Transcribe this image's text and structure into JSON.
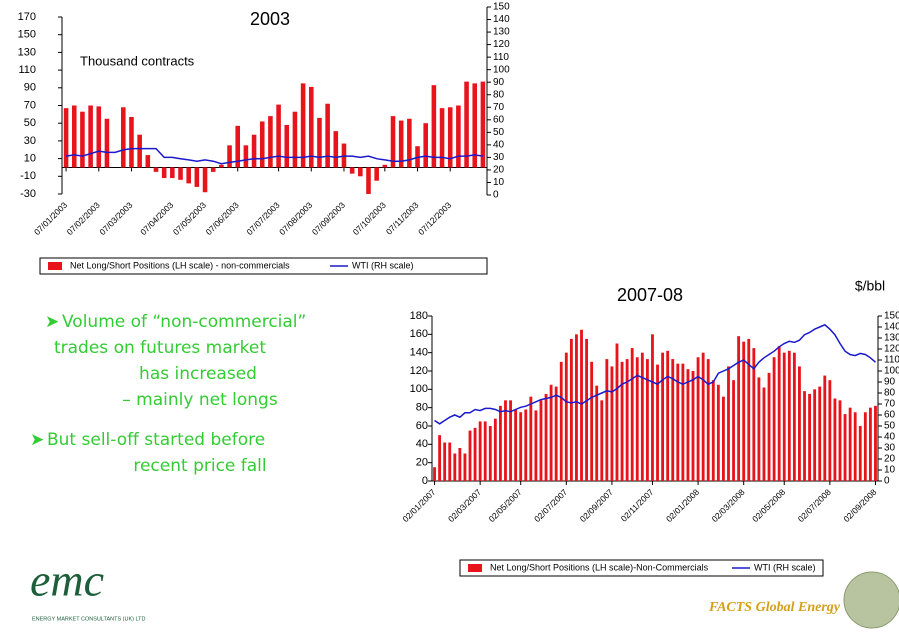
{
  "chart_data": [
    {
      "type": "bar",
      "title": "2003",
      "annotation": "Thousand contracts",
      "categories": [
        "07/01/2003",
        null,
        null,
        null,
        "07/02/2003",
        null,
        null,
        null,
        "07/03/2003",
        null,
        null,
        null,
        null,
        "07/04/2003",
        null,
        null,
        null,
        "07/05/2003",
        null,
        null,
        null,
        "07/06/2003",
        null,
        null,
        null,
        null,
        "07/07/2003",
        null,
        null,
        null,
        "07/08/2003",
        null,
        null,
        null,
        "07/09/2003",
        null,
        null,
        null,
        null,
        "07/10/2003",
        null,
        null,
        null,
        "07/11/2003",
        null,
        null,
        null,
        "07/12/2003",
        null,
        null,
        null,
        null
      ],
      "series": [
        {
          "name": "Net Long/Short Positions (LH scale) - non-commercials",
          "color": "#e8141b",
          "values": [
            67,
            70,
            63,
            70,
            69,
            55,
            null,
            68,
            57,
            37,
            14,
            -5,
            -12,
            -12,
            -14,
            -18,
            -22,
            -28,
            -5,
            3,
            25,
            47,
            25,
            37,
            52,
            58,
            71,
            48,
            63,
            95,
            91,
            56,
            72,
            41,
            27,
            -7,
            -10,
            -30,
            -15,
            3,
            58,
            53,
            55,
            24,
            50,
            93,
            67,
            68,
            70,
            97,
            95,
            97
          ]
        },
        {
          "name": "WTI (RH scale)",
          "color": "#1a1acc",
          "axis": "y2",
          "values": [
            31,
            32,
            31,
            33,
            35,
            34,
            34,
            36,
            37,
            37,
            37,
            37,
            30,
            30,
            29,
            28,
            27,
            28,
            27,
            25,
            26,
            27,
            28,
            29,
            29,
            30,
            31,
            30,
            30,
            30,
            31,
            30,
            31,
            30,
            31,
            31,
            30,
            31,
            29,
            28,
            27,
            27,
            28,
            30,
            31,
            30,
            30,
            29,
            31,
            31,
            32,
            31
          ]
        }
      ],
      "ylim": [
        -30,
        170
      ],
      "yticks": [
        -30,
        -10,
        10,
        30,
        50,
        70,
        90,
        110,
        130,
        150,
        170
      ],
      "y2lim": [
        0,
        150
      ],
      "y2ticks": [
        0,
        10,
        20,
        30,
        40,
        50,
        60,
        70,
        80,
        90,
        100,
        110,
        120,
        130,
        140,
        150
      ]
    },
    {
      "type": "bar",
      "title": "2007-08",
      "y2label": "$/bbl",
      "categories": [
        "02/01/2007",
        null,
        null,
        null,
        null,
        null,
        null,
        null,
        null,
        "02/03/2007",
        null,
        null,
        null,
        null,
        null,
        null,
        null,
        "02/05/2007",
        null,
        null,
        null,
        null,
        null,
        null,
        null,
        null,
        "02/07/2007",
        null,
        null,
        null,
        null,
        null,
        null,
        null,
        null,
        "02/09/2007",
        null,
        null,
        null,
        null,
        null,
        null,
        null,
        "02/11/2007",
        null,
        null,
        null,
        null,
        null,
        null,
        null,
        null,
        "02/01/2008",
        null,
        null,
        null,
        null,
        null,
        null,
        null,
        null,
        "02/03/2008",
        null,
        null,
        null,
        null,
        null,
        null,
        null,
        "02/05/2008",
        null,
        null,
        null,
        null,
        null,
        null,
        null,
        null,
        "02/07/2008",
        null,
        null,
        null,
        null,
        null,
        null,
        null,
        null,
        "02/09/2008"
      ],
      "series": [
        {
          "name": "Net Long/Short Positions (LH scale)-Non-Commercials",
          "color": "#e8141b",
          "values": [
            15,
            50,
            42,
            42,
            30,
            36,
            30,
            55,
            58,
            65,
            65,
            60,
            68,
            82,
            88,
            88,
            78,
            75,
            78,
            92,
            77,
            88,
            95,
            105,
            103,
            130,
            140,
            155,
            160,
            165,
            155,
            130,
            104,
            88,
            133,
            125,
            150,
            130,
            133,
            145,
            135,
            140,
            133,
            160,
            127,
            140,
            142,
            133,
            128,
            128,
            122,
            120,
            135,
            140,
            133,
            110,
            105,
            92,
            125,
            110,
            158,
            152,
            155,
            145,
            113,
            102,
            118,
            135,
            147,
            140,
            142,
            140,
            125,
            98,
            95,
            100,
            103,
            115,
            110,
            90,
            88,
            73,
            80,
            75,
            60,
            75,
            80,
            82
          ]
        },
        {
          "name": "WTI (RH scale)",
          "color": "#1a1acc",
          "axis": "y2",
          "values": [
            55,
            52,
            55,
            58,
            60,
            58,
            62,
            62,
            65,
            64,
            66,
            66,
            65,
            63,
            64,
            63,
            65,
            67,
            68,
            70,
            72,
            74,
            75,
            76,
            78,
            76,
            72,
            71,
            72,
            70,
            73,
            76,
            78,
            80,
            82,
            81,
            84,
            88,
            90,
            93,
            96,
            94,
            92,
            90,
            88,
            92,
            95,
            93,
            90,
            88,
            90,
            92,
            95,
            92,
            88,
            90,
            98,
            100,
            102,
            105,
            108,
            110,
            106,
            102,
            108,
            112,
            115,
            118,
            122,
            125,
            127,
            126,
            128,
            133,
            135,
            138,
            140,
            142,
            138,
            133,
            125,
            118,
            115,
            114,
            116,
            115,
            112,
            108
          ]
        }
      ],
      "ylim": [
        0,
        180
      ],
      "yticks": [
        0,
        20,
        40,
        60,
        80,
        100,
        120,
        140,
        160,
        180
      ],
      "y2lim": [
        0,
        150
      ],
      "y2ticks": [
        0,
        10,
        20,
        30,
        40,
        50,
        60,
        70,
        80,
        90,
        100,
        110,
        120,
        130,
        140,
        150
      ]
    }
  ],
  "bullets": [
    {
      "lines": [
        "Volume of “non-commercial”",
        "trades on futures market",
        "has increased",
        "– mainly net longs"
      ]
    },
    {
      "lines": [
        "But sell-off started before",
        "recent price fall"
      ]
    }
  ],
  "logo": {
    "name": "emc",
    "tagline": "ENERGY MARKET CONSULTANTS (UK) LTD"
  },
  "footer": "FACTS Global Energy"
}
